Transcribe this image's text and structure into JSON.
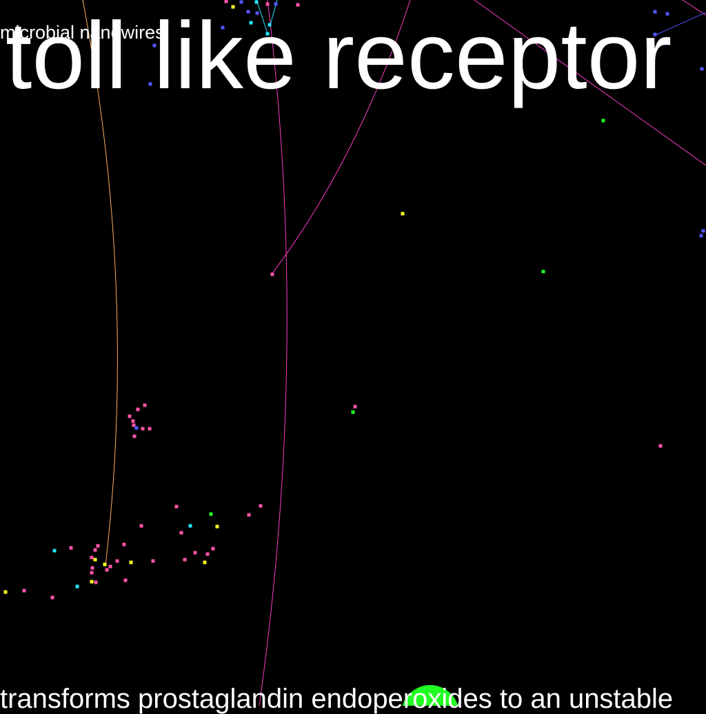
{
  "labels": {
    "title": "toll like receptor",
    "small": "microbial nanowires",
    "bottom": "transforms prostaglandin endoperoxides to an unstable"
  },
  "colors": {
    "background": "#000000",
    "text": "#ffffff",
    "magenta": "#ff3ec8",
    "pink": "#ff55aa",
    "yellow": "#ffff22",
    "cyan": "#22e6ff",
    "blue": "#5555ff",
    "green": "#22ff22",
    "orange": "#ffb060"
  }
}
